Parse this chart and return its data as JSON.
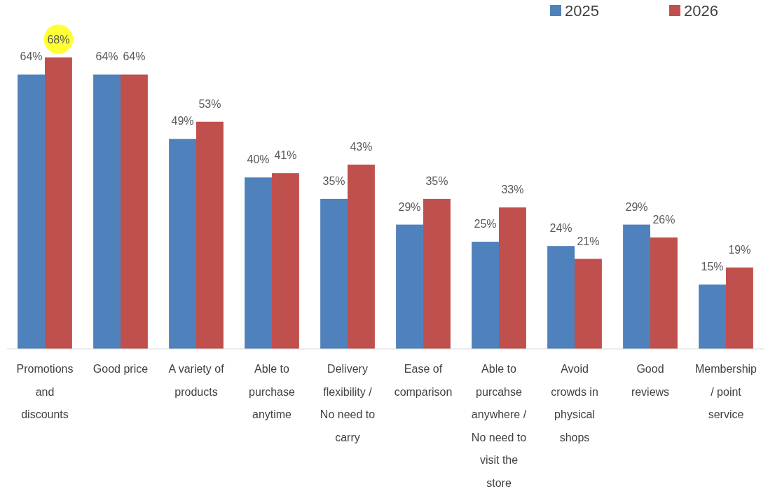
{
  "chart_data": {
    "type": "bar",
    "categories": [
      "Promotions and discounts",
      "Good price",
      "A variety of products",
      "Able to purchase anytime",
      "Delivery flexibility / No need to carry",
      "Ease of comparison",
      "Able to purcahse anywhere / No need to visit the store",
      "Avoid crowds in physical shops",
      "Good reviews",
      "Membership / point service"
    ],
    "series": [
      {
        "name": "2025",
        "color": "#4f81bd",
        "values": [
          64,
          64,
          49,
          40,
          35,
          29,
          25,
          24,
          29,
          15
        ],
        "value_labels": [
          "64%",
          "64%",
          "49%",
          "40%",
          "35%",
          "29%",
          "25%",
          "24%",
          "29%",
          "15%"
        ]
      },
      {
        "name": "2026",
        "color": "#c0504d",
        "values": [
          68,
          64,
          53,
          41,
          43,
          35,
          33,
          21,
          26,
          19
        ],
        "value_labels": [
          "68%",
          "64%",
          "53%",
          "41%",
          "43%",
          "35%",
          "33%",
          "21%",
          "26%",
          "19%"
        ]
      }
    ],
    "legend": "top right"
  }
}
